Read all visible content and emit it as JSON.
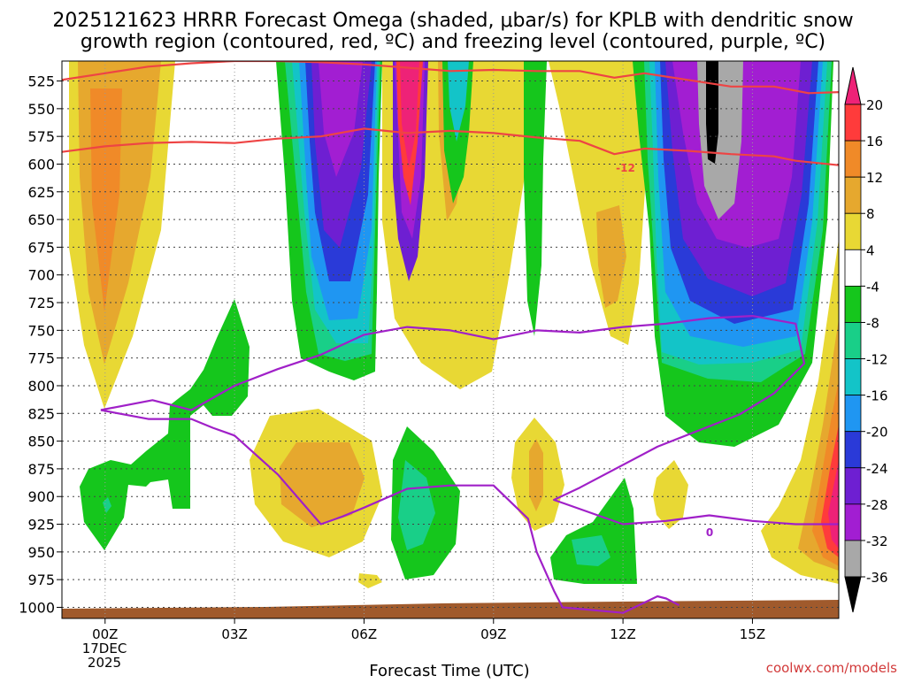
{
  "chart_data": {
    "type": "contour",
    "title_line1": "2025121623 HRRR Forecast Omega (shaded, μbar/s) for KPLB with dendritic snow",
    "title_line2": "growth region (contoured, red, ºC) and freezing level (contoured, purple, ºC)",
    "xlabel": "Forecast Time (UTC)",
    "date_line1": "17DEC",
    "date_line2": "2025",
    "watermark": "coolwx.com/models",
    "x_range_hours": [
      -1,
      17
    ],
    "x_ticks": [
      {
        "hour": 0,
        "label": "00Z"
      },
      {
        "hour": 3,
        "label": "03Z"
      },
      {
        "hour": 6,
        "label": "06Z"
      },
      {
        "hour": 9,
        "label": "09Z"
      },
      {
        "hour": 12,
        "label": "12Z"
      },
      {
        "hour": 15,
        "label": "15Z"
      }
    ],
    "y_range_hpa": [
      1010,
      507
    ],
    "y_ticks": [
      525,
      550,
      575,
      600,
      625,
      650,
      675,
      700,
      725,
      750,
      775,
      800,
      825,
      850,
      875,
      900,
      925,
      950,
      975,
      1000
    ],
    "colorbar": {
      "labels": [
        "20",
        "16",
        "12",
        "8",
        "4",
        "-4",
        "-8",
        "-12",
        "-16",
        "-20",
        "-24",
        "-28",
        "-32",
        "-36"
      ],
      "bins": [
        {
          "from": 16,
          "to": 20,
          "color": "#ff3b3b"
        },
        {
          "from": 12,
          "to": 16,
          "color": "#f08a28"
        },
        {
          "from": 8,
          "to": 12,
          "color": "#e6a82e"
        },
        {
          "from": 4,
          "to": 8,
          "color": "#e8d834"
        },
        {
          "from": -4,
          "to": 4,
          "color": "#ffffff"
        },
        {
          "from": -8,
          "to": -4,
          "color": "#15c61c"
        },
        {
          "from": -12,
          "to": -8,
          "color": "#19cf88"
        },
        {
          "from": -16,
          "to": -12,
          "color": "#13c4c8"
        },
        {
          "from": -20,
          "to": -16,
          "color": "#1f96f2"
        },
        {
          "from": -24,
          "to": -20,
          "color": "#2a3ad8"
        },
        {
          "from": -28,
          "to": -24,
          "color": "#6e1fd2"
        },
        {
          "from": -32,
          "to": -28,
          "color": "#a21ed2"
        },
        {
          "from": -36,
          "to": -32,
          "color": "#a8a8a8"
        }
      ],
      "top_arrow_color": "#ee2277",
      "bottom_arrow_color": "#000000"
    },
    "contour_labels": {
      "dgz_top": "-12",
      "freezing": "0"
    },
    "series": [
      {
        "name": "dgz_-12C",
        "color": "#ee4444",
        "points": [
          [
            -1,
            524
          ],
          [
            0,
            518
          ],
          [
            1,
            512
          ],
          [
            2,
            509
          ],
          [
            3,
            507
          ],
          [
            4,
            507
          ],
          [
            5,
            508
          ],
          [
            6,
            510
          ],
          [
            7,
            513
          ],
          [
            8,
            516
          ],
          [
            9,
            515
          ],
          [
            10,
            516
          ],
          [
            11,
            516
          ],
          [
            11.8,
            522
          ],
          [
            12.5,
            518
          ],
          [
            13.5,
            524
          ],
          [
            14.5,
            530
          ],
          [
            15.5,
            530
          ],
          [
            16.3,
            536
          ],
          [
            17,
            535
          ]
        ]
      },
      {
        "name": "dgz_-18C",
        "color": "#ee4444",
        "points": [
          [
            -1,
            589
          ],
          [
            0,
            584
          ],
          [
            1,
            581
          ],
          [
            2,
            580
          ],
          [
            3,
            581
          ],
          [
            4,
            577
          ],
          [
            5,
            575
          ],
          [
            6,
            568
          ],
          [
            7,
            572
          ],
          [
            8,
            570
          ],
          [
            9,
            572
          ],
          [
            10,
            576
          ],
          [
            11,
            579
          ],
          [
            11.8,
            591
          ],
          [
            12.5,
            586
          ],
          [
            13.5,
            588
          ],
          [
            14.5,
            591
          ],
          [
            15.5,
            593
          ],
          [
            16,
            597
          ],
          [
            17,
            601
          ]
        ]
      },
      {
        "name": "freezing_level_0C_main",
        "color": "#a020c8",
        "points": [
          [
            -0.1,
            822
          ],
          [
            1.1,
            813
          ],
          [
            2,
            822
          ],
          [
            3,
            800
          ],
          [
            4,
            785
          ],
          [
            5,
            772
          ],
          [
            6,
            754
          ],
          [
            7,
            747
          ],
          [
            8,
            750
          ],
          [
            9,
            758
          ],
          [
            10,
            750
          ],
          [
            11,
            752
          ],
          [
            12,
            747
          ],
          [
            13,
            744
          ],
          [
            14,
            739
          ],
          [
            15,
            737
          ],
          [
            16,
            744
          ],
          [
            16.2,
            780
          ],
          [
            15.5,
            807
          ],
          [
            14.7,
            826
          ],
          [
            12.8,
            855
          ],
          [
            11,
            892
          ],
          [
            10.4,
            903
          ],
          [
            12,
            925
          ],
          [
            13,
            922
          ],
          [
            14,
            917
          ],
          [
            15,
            922
          ],
          [
            16,
            925
          ],
          [
            17,
            925
          ]
        ]
      },
      {
        "name": "freezing_level_0C_lower",
        "color": "#a020c8",
        "points": [
          [
            -0.1,
            822
          ],
          [
            1,
            830
          ],
          [
            2,
            830
          ],
          [
            2.5,
            838
          ],
          [
            3,
            845
          ],
          [
            4,
            880
          ],
          [
            5,
            925
          ],
          [
            5.5,
            918
          ],
          [
            6,
            910
          ],
          [
            7,
            893
          ],
          [
            8,
            890
          ],
          [
            9,
            890
          ],
          [
            9.8,
            920
          ],
          [
            10,
            950
          ],
          [
            10.4,
            985
          ],
          [
            10.6,
            1000
          ],
          [
            12,
            1005
          ],
          [
            12.8,
            990
          ],
          [
            13,
            992
          ],
          [
            13.3,
            998
          ]
        ]
      }
    ]
  }
}
